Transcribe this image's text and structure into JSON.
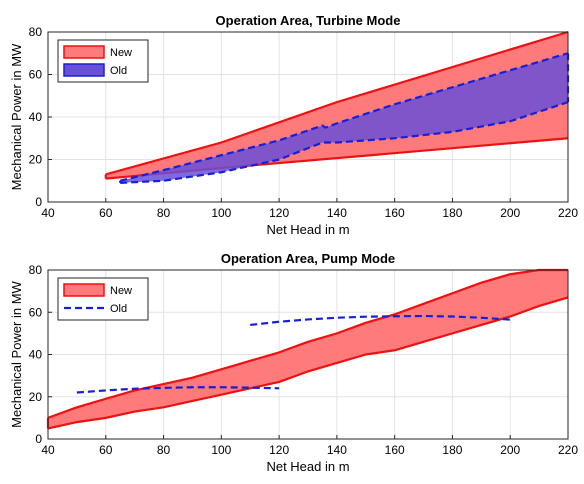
{
  "chart_data": [
    {
      "type": "area",
      "title": "Operation Area, Turbine Mode",
      "xlabel": "Net Head in m",
      "ylabel": "Mechanical Power in MW",
      "xlim": [
        40,
        220
      ],
      "ylim": [
        0,
        80
      ],
      "xticks": [
        40,
        60,
        80,
        100,
        120,
        140,
        160,
        180,
        200,
        220
      ],
      "yticks": [
        0,
        20,
        40,
        60,
        80
      ],
      "grid": true,
      "legend": "top-left",
      "series": [
        {
          "name": "New",
          "fill": "#ff7a7a",
          "stroke": "#ee1111",
          "upper": {
            "x": [
              60,
              100,
              140,
              220
            ],
            "y": [
              13,
              28,
              47,
              80
            ]
          },
          "lower": {
            "x": [
              60,
              100,
              220
            ],
            "y": [
              11,
              16,
              30
            ]
          }
        },
        {
          "name": "Old",
          "fill": "#6a4fd8",
          "stroke": "#1520d8",
          "upper": {
            "x": [
              65,
              80,
              100,
              120,
              135,
              136,
              140,
              160,
              180,
              200,
              220
            ],
            "y": [
              10,
              15,
              22,
              29,
              36,
              35,
              37,
              46,
              54,
              62,
              70
            ]
          },
          "lower": {
            "x": [
              65,
              80,
              100,
              120,
              135,
              136,
              140,
              160,
              180,
              200,
              220
            ],
            "y": [
              9,
              10,
              14,
              20,
              28,
              28,
              28,
              30,
              33,
              38,
              47
            ]
          }
        }
      ]
    },
    {
      "type": "area",
      "title": "Operation Area, Pump Mode",
      "xlabel": "Net Head in m",
      "ylabel": "Mechanical Power in MW",
      "xlim": [
        40,
        220
      ],
      "ylim": [
        0,
        80
      ],
      "xticks": [
        40,
        60,
        80,
        100,
        120,
        140,
        160,
        180,
        200,
        220
      ],
      "yticks": [
        0,
        20,
        40,
        60,
        80
      ],
      "grid": true,
      "legend": "top-left",
      "series": [
        {
          "name": "New",
          "fill": "#ff7a7a",
          "stroke": "#ee1111",
          "upper": {
            "x": [
              40,
              50,
              60,
              70,
              80,
              90,
              100,
              110,
              120,
              130,
              140,
              150,
              160,
              170,
              180,
              190,
              200,
              210,
              220
            ],
            "y": [
              10,
              15,
              19,
              23,
              26,
              29,
              33,
              37,
              41,
              46,
              50,
              55,
              59,
              64,
              69,
              74,
              78,
              80,
              80
            ]
          },
          "lower": {
            "x": [
              40,
              50,
              60,
              70,
              80,
              90,
              100,
              110,
              120,
              130,
              140,
              150,
              160,
              170,
              180,
              190,
              200,
              210,
              220
            ],
            "y": [
              5,
              8,
              10,
              13,
              15,
              18,
              21,
              24,
              27,
              32,
              36,
              40,
              42,
              46,
              50,
              54,
              58,
              63,
              67
            ]
          }
        },
        {
          "name": "Old",
          "stroke": "#1520d8",
          "dashed": true,
          "lines": [
            {
              "x": [
                50,
                60,
                70,
                80,
                90,
                100,
                110,
                120
              ],
              "y": [
                22,
                23,
                23.8,
                24.2,
                24.5,
                24.5,
                24.3,
                24
              ]
            },
            {
              "x": [
                110,
                120,
                130,
                140,
                150,
                160,
                170,
                180,
                190,
                200
              ],
              "y": [
                54,
                55.5,
                56.6,
                57.4,
                57.9,
                58.1,
                58.2,
                58,
                57.4,
                56.5
              ]
            }
          ]
        }
      ]
    }
  ]
}
